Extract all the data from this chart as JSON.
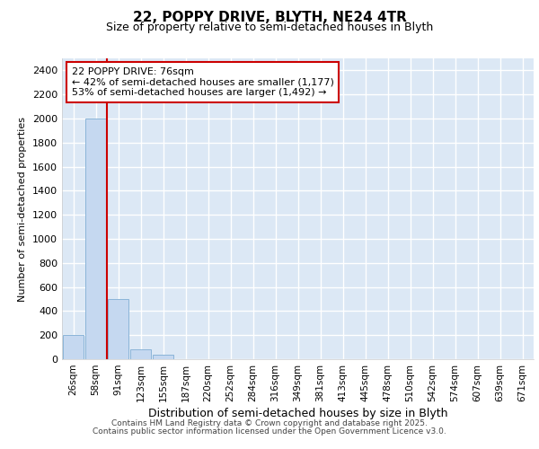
{
  "title_line1": "22, POPPY DRIVE, BLYTH, NE24 4TR",
  "title_line2": "Size of property relative to semi-detached houses in Blyth",
  "xlabel": "Distribution of semi-detached houses by size in Blyth",
  "ylabel": "Number of semi-detached properties",
  "categories": [
    "26sqm",
    "58sqm",
    "91sqm",
    "123sqm",
    "155sqm",
    "187sqm",
    "220sqm",
    "252sqm",
    "284sqm",
    "316sqm",
    "349sqm",
    "381sqm",
    "413sqm",
    "445sqm",
    "478sqm",
    "510sqm",
    "542sqm",
    "574sqm",
    "607sqm",
    "639sqm",
    "671sqm"
  ],
  "values": [
    200,
    2000,
    500,
    85,
    35,
    0,
    0,
    0,
    0,
    0,
    0,
    0,
    0,
    0,
    0,
    0,
    0,
    0,
    0,
    0,
    0
  ],
  "bar_color": "#c5d8f0",
  "bar_edge_color": "#8ab4d8",
  "annotation_text": "22 POPPY DRIVE: 76sqm\n← 42% of semi-detached houses are smaller (1,177)\n53% of semi-detached houses are larger (1,492) →",
  "annotation_box_color": "#ffffff",
  "annotation_box_edge": "#cc0000",
  "ylim": [
    0,
    2500
  ],
  "yticks": [
    0,
    200,
    400,
    600,
    800,
    1000,
    1200,
    1400,
    1600,
    1800,
    2000,
    2200,
    2400
  ],
  "background_color": "#dce8f5",
  "grid_color": "#ffffff",
  "fig_background": "#ffffff",
  "footer_line1": "Contains HM Land Registry data © Crown copyright and database right 2025.",
  "footer_line2": "Contains public sector information licensed under the Open Government Licence v3.0."
}
